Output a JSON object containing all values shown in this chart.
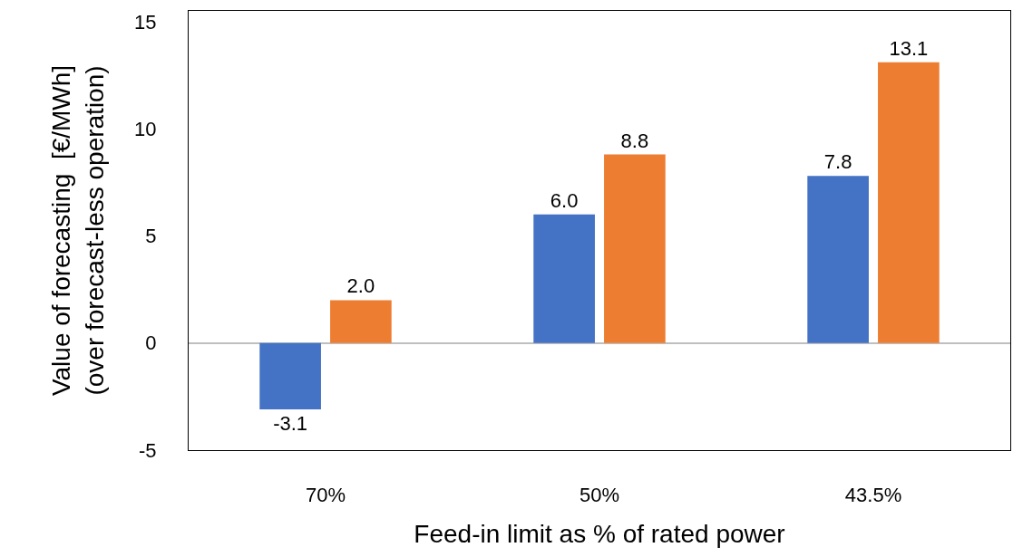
{
  "chart_data": {
    "type": "bar",
    "xlabel": "Feed-in limit as % of rated power",
    "ylabel": "Value of forecasting  [€/MWh]\n(over forecast-less operation)",
    "categories": [
      "70%",
      "50%",
      "43.5%"
    ],
    "series": [
      {
        "color": "#4472c4",
        "values": [
          -3.1,
          6.0,
          7.8
        ],
        "value_labels": [
          "-3.1",
          "6.0",
          "7.8"
        ]
      },
      {
        "color": "#ed7d31",
        "values": [
          2.0,
          8.8,
          13.1
        ],
        "value_labels": [
          "2.0",
          "8.8",
          "13.1"
        ]
      }
    ],
    "ylim": [
      -5,
      15.5
    ],
    "yticks": [
      -5,
      0,
      5,
      10,
      15
    ]
  }
}
